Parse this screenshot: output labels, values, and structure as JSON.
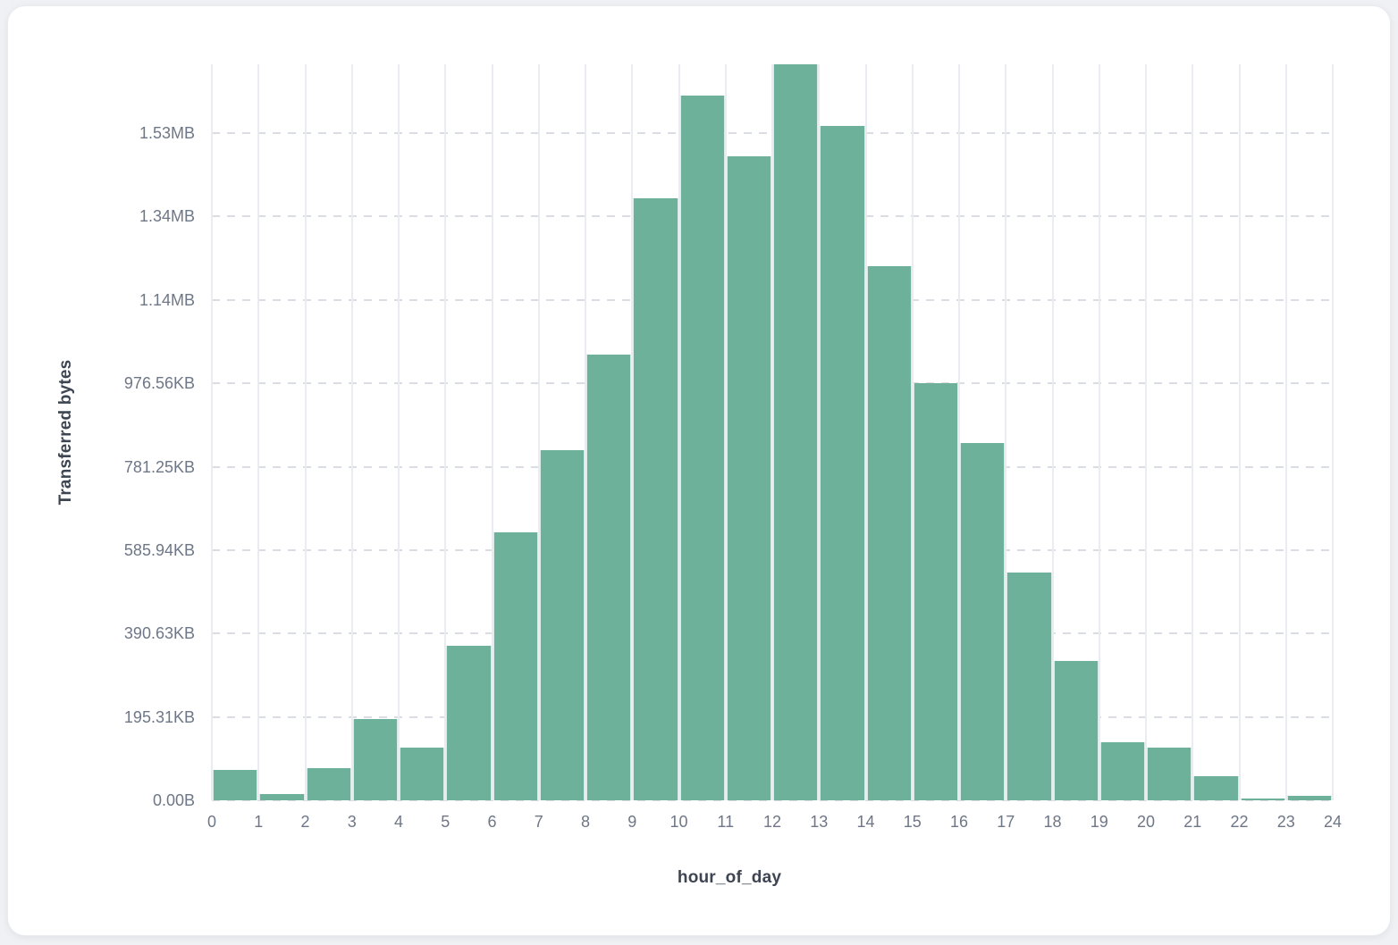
{
  "chart_data": {
    "type": "bar",
    "title": "",
    "xlabel": "hour_of_day",
    "ylabel": "Transferred bytes",
    "x_tick_labels": [
      "0",
      "1",
      "2",
      "3",
      "4",
      "5",
      "6",
      "7",
      "8",
      "9",
      "10",
      "11",
      "12",
      "13",
      "14",
      "15",
      "16",
      "17",
      "18",
      "19",
      "20",
      "21",
      "22",
      "23",
      "24"
    ],
    "y_tick_labels": [
      "0.00B",
      "195.31KB",
      "390.63KB",
      "585.94KB",
      "781.25KB",
      "976.56KB",
      "1.14MB",
      "1.34MB",
      "1.53MB"
    ],
    "y_tick_bytes": [
      0,
      200000,
      400000,
      600000,
      800000,
      1000000,
      1200000,
      1400000,
      1600000
    ],
    "ylim": [
      0,
      1765000
    ],
    "bin_start_hours": [
      0,
      1,
      2,
      3,
      4,
      5,
      6,
      7,
      8,
      9,
      10,
      11,
      12,
      13,
      14,
      15,
      16,
      17,
      18,
      19,
      20,
      21,
      22,
      23
    ],
    "values_bytes": [
      73000,
      15500,
      78000,
      196000,
      127000,
      370000,
      642000,
      839000,
      1069000,
      1443000,
      1690000,
      1545000,
      1765000,
      1617000,
      1281000,
      1000000,
      857000,
      547000,
      334000,
      140000,
      126000,
      57000,
      3600,
      11600
    ],
    "grid": "vertical solid, horizontal dashed",
    "legend": "none"
  },
  "colors": {
    "bar": "#6db19b",
    "vertical_grid": "#eaecf1",
    "dashed_grid": "#dadde3",
    "tick_label": "#6e7787",
    "axis_title": "#3d4452",
    "card_background": "#ffffff",
    "page_background": "#f0f1f4"
  }
}
